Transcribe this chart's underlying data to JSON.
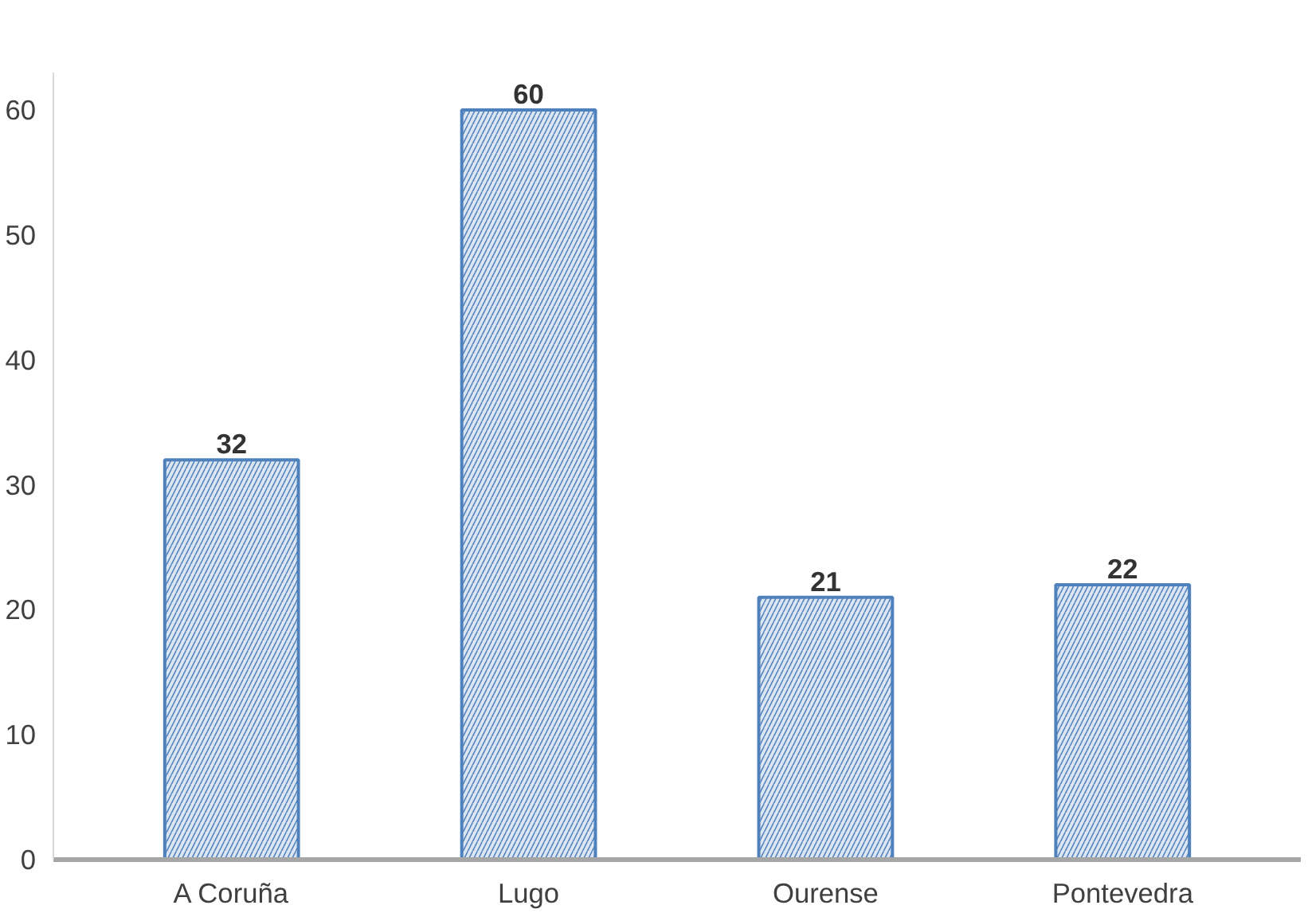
{
  "chart_data": {
    "type": "bar",
    "categories": [
      "A Coruña",
      "Lugo",
      "Ourense",
      "Pontevedra"
    ],
    "values": [
      32,
      60,
      21,
      22
    ],
    "color": "#4f81bd",
    "ylim": [
      0,
      63
    ],
    "yticks": [
      0,
      10,
      20,
      30,
      40,
      50,
      60
    ],
    "grid": false,
    "data_labels": true
  }
}
